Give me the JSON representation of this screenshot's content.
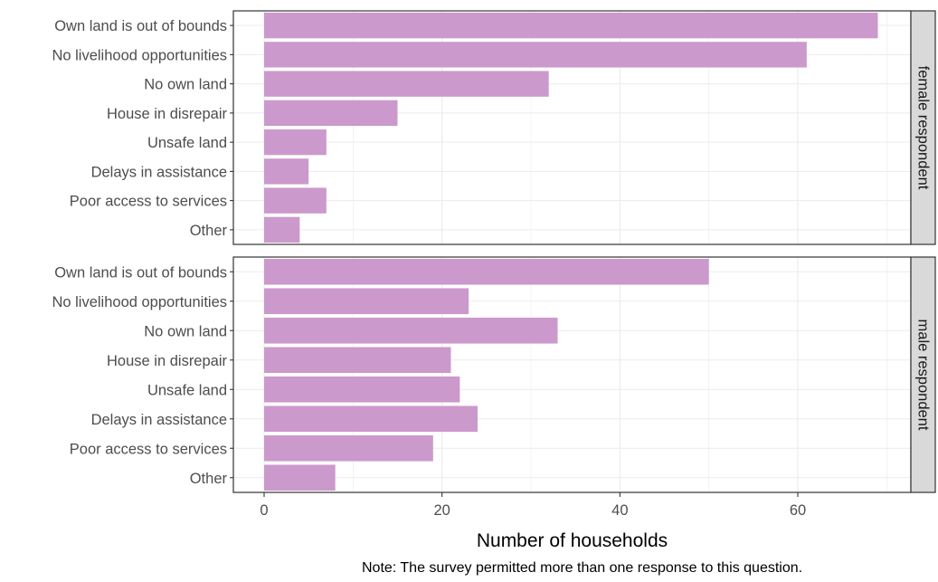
{
  "chart_data": {
    "type": "bar",
    "orientation": "horizontal",
    "faceted": true,
    "bar_color": "#cc99cc",
    "panel_strip_color": "#d9d9d9",
    "grid": true,
    "xlabel": "Number of households",
    "ylabel": "",
    "xlim": [
      0,
      72
    ],
    "x_ticks": [
      0,
      20,
      40,
      60
    ],
    "categories": [
      "Own land is out of bounds",
      "No livelihood opportunities",
      "No own land",
      "House in disrepair",
      "Unsafe land",
      "Delays in assistance",
      "Poor access to services",
      "Other"
    ],
    "panels": [
      {
        "strip": "female respondent",
        "values": [
          69,
          61,
          32,
          15,
          7,
          5,
          7,
          4
        ]
      },
      {
        "strip": "male respondent",
        "values": [
          50,
          23,
          33,
          21,
          22,
          24,
          19,
          8
        ]
      }
    ]
  },
  "note": "Note: The survey permitted more than one response to this question."
}
